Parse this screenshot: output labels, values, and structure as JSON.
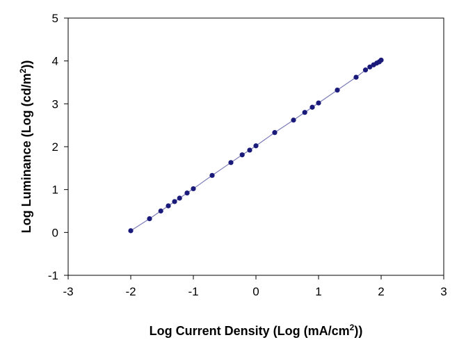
{
  "chart_data": {
    "type": "scatter",
    "xlabel": {
      "before": "Log Current Density  (Log (mA/cm",
      "sup": "2",
      "after": "))"
    },
    "ylabel": {
      "before": "Log Luminance  (Log (cd/m",
      "sup": "2",
      "after": "))"
    },
    "xlim": [
      -3,
      3
    ],
    "ylim": [
      -1,
      5
    ],
    "x_ticks": [
      "-3",
      "-2",
      "-1",
      "0",
      "1",
      "2",
      "3"
    ],
    "y_ticks": [
      "-1",
      "0",
      "1",
      "2",
      "3",
      "4",
      "5"
    ],
    "grid": false,
    "fit_line": true,
    "series": [
      {
        "marker_color": "#1a1a7a",
        "line_color": "#7a7ab8",
        "x": [
          -2.0,
          -1.7,
          -1.52,
          -1.4,
          -1.3,
          -1.22,
          -1.1,
          -1.0,
          -0.7,
          -0.4,
          -0.22,
          -0.1,
          0.0,
          0.3,
          0.6,
          0.78,
          0.9,
          1.0,
          1.3,
          1.6,
          1.75,
          1.82,
          1.88,
          1.93,
          1.97,
          2.0
        ],
        "y": [
          0.04,
          0.32,
          0.5,
          0.62,
          0.72,
          0.8,
          0.92,
          1.02,
          1.33,
          1.63,
          1.81,
          1.92,
          2.02,
          2.33,
          2.62,
          2.8,
          2.92,
          3.02,
          3.32,
          3.62,
          3.79,
          3.86,
          3.91,
          3.95,
          3.98,
          4.02
        ]
      }
    ]
  }
}
